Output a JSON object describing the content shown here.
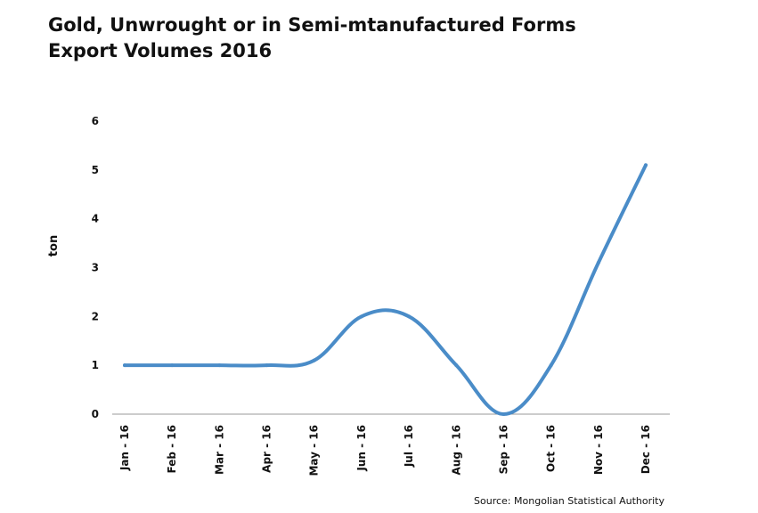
{
  "chart_data": {
    "type": "line",
    "title_line1": "Gold, Unwrought or in Semi-mtanufactured Forms",
    "title_line2": "Export Volumes 2016",
    "xlabel": "",
    "ylabel": "ton",
    "categories": [
      "Jan - 16",
      "Feb - 16",
      "Mar - 16",
      "Apr - 16",
      "May - 16",
      "Jun - 16",
      "Jul - 16",
      "Aug - 16",
      "Sep - 16",
      "Oct - 16",
      "Nov - 16",
      "Dec - 16"
    ],
    "values": [
      1,
      1,
      1,
      1,
      1.1,
      2,
      2,
      1,
      0,
      1,
      3.1,
      5.1
    ],
    "y_ticks": [
      "0",
      "1",
      "2",
      "3",
      "4",
      "5",
      "6"
    ],
    "ylim": [
      0,
      6
    ],
    "grid": false,
    "line_color": "#4a8cc8",
    "source": "Source: Mongolian Statistical Authority"
  }
}
